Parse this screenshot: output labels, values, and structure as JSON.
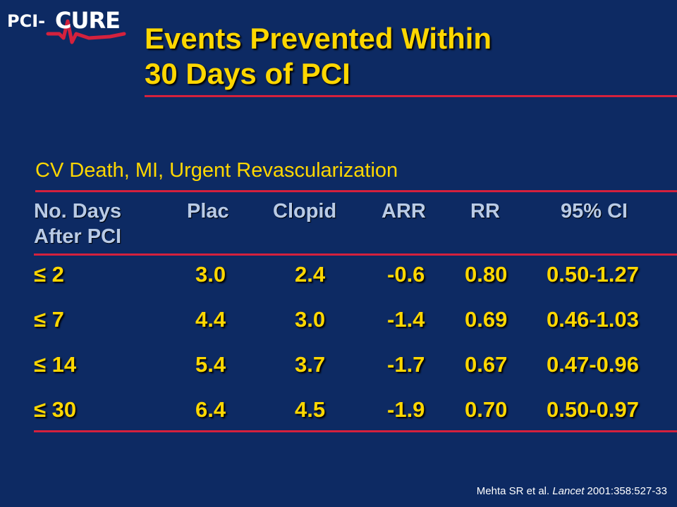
{
  "logo": {
    "prefix": "PCI-",
    "word": "CURE"
  },
  "title": {
    "line1": "Events Prevented Within",
    "line2": "30 Days of PCI"
  },
  "subtitle": "CV Death, MI, Urgent Revascularization",
  "table": {
    "headers": [
      "No. Days",
      "Plac",
      "Clopid",
      "ARR",
      "RR",
      "95% CI"
    ],
    "header_line2": "After PCI",
    "rows": [
      {
        "days": "≤ 2",
        "plac": "3.0",
        "clopid": "2.4",
        "arr": "-0.6",
        "rr": "0.80",
        "ci": "0.50-1.27"
      },
      {
        "days": "≤ 7",
        "plac": "4.4",
        "clopid": "3.0",
        "arr": "-1.4",
        "rr": "0.69",
        "ci": "0.46-1.03"
      },
      {
        "days": "≤ 14",
        "plac": "5.4",
        "clopid": "3.7",
        "arr": "-1.7",
        "rr": "0.67",
        "ci": "0.47-0.96"
      },
      {
        "days": "≤ 30",
        "plac": "6.4",
        "clopid": "4.5",
        "arr": "-1.9",
        "rr": "0.70",
        "ci": "0.50-0.97"
      }
    ]
  },
  "citation": {
    "authors": "Mehta SR et al. ",
    "journal": "Lancet",
    "ref": " 2001:358:527-33"
  },
  "colors": {
    "background": "#0d2a63",
    "title": "#ffd700",
    "header": "#b9cbe6",
    "rule": "#d4213d"
  }
}
